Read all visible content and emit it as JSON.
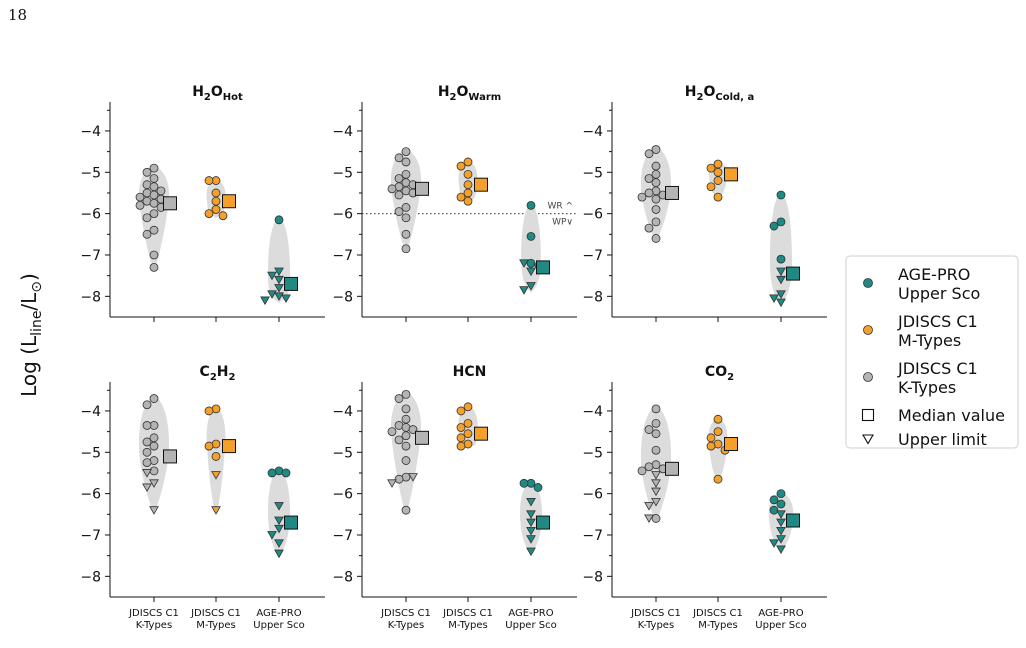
{
  "page_number": "18",
  "figure": {
    "ylabel_main": "Log (L",
    "ylabel_sub": "line",
    "ylabel_mid": "/L",
    "ylabel_sun": "⊙",
    "ylabel_end": ")",
    "dotted_line_labels": [
      "WR ^",
      "WP∨"
    ]
  },
  "legend": {
    "entries": [
      {
        "line1": "AGE-PRO",
        "line2": "Upper Sco",
        "marker": "circle",
        "color": "#1f8a84"
      },
      {
        "line1": "JDISCS C1",
        "line2": "M-Types",
        "marker": "circle",
        "color": "#f4a02a"
      },
      {
        "line1": "JDISCS C1",
        "line2": "K-Types",
        "marker": "circle",
        "color": "#b4b4b4"
      },
      {
        "line1": "Median value",
        "line2": "",
        "marker": "square-open",
        "color": "#ffffff"
      },
      {
        "line1": "Upper limit",
        "line2": "",
        "marker": "triangle-open",
        "color": "#ffffff"
      }
    ]
  },
  "chart_data": [
    {
      "type": "scatter",
      "title_base": "H",
      "title_sub1": "2",
      "title_mid": "O",
      "title_sub2": "Hot",
      "yticks": [
        -4,
        -5,
        -6,
        -7,
        -8
      ],
      "ylim": [
        -8.5,
        -3.3
      ],
      "categories": [
        "JDISCS C1 K-Types",
        "JDISCS C1 M-Types",
        "AGE-PRO Upper Sco"
      ],
      "xticklabels": [
        [
          "JDISCS C1",
          "K-Types"
        ],
        [
          "JDISCS C1",
          "M-Types"
        ],
        [
          "AGE-PRO",
          "Upper Sco"
        ]
      ],
      "series": [
        {
          "name": "JDISCS C1 K-Types",
          "color": "#b4b4b4",
          "median": -5.75,
          "detections": [
            -4.9,
            -5.0,
            -5.15,
            -5.3,
            -5.35,
            -5.45,
            -5.5,
            -5.55,
            -5.6,
            -5.65,
            -5.7,
            -5.75,
            -5.8,
            -5.85,
            -6.0,
            -6.1,
            -6.4,
            -6.5,
            -7.0,
            -7.3
          ],
          "upper_limits": []
        },
        {
          "name": "JDISCS C1 M-Types",
          "color": "#f4a02a",
          "median": -5.7,
          "detections": [
            -5.2,
            -5.2,
            -5.5,
            -5.7,
            -5.9,
            -6.0,
            -6.05
          ],
          "upper_limits": []
        },
        {
          "name": "AGE-PRO Upper Sco",
          "color": "#1f8a84",
          "median": -7.7,
          "detections": [
            -6.15
          ],
          "upper_limits": [
            -7.4,
            -7.5,
            -7.6,
            -7.8,
            -7.95,
            -8.0,
            -8.05,
            -8.1
          ]
        }
      ]
    },
    {
      "type": "scatter",
      "title_base": "H",
      "title_sub1": "2",
      "title_mid": "O",
      "title_sub2": "Warm",
      "yticks": [
        -4,
        -5,
        -6,
        -7,
        -8
      ],
      "ylim": [
        -8.5,
        -3.3
      ],
      "dotted_line": -6.0,
      "categories": [
        "JDISCS C1 K-Types",
        "JDISCS C1 M-Types",
        "AGE-PRO Upper Sco"
      ],
      "xticklabels": [
        [
          "JDISCS C1",
          "K-Types"
        ],
        [
          "JDISCS C1",
          "M-Types"
        ],
        [
          "AGE-PRO",
          "Upper Sco"
        ]
      ],
      "series": [
        {
          "name": "JDISCS C1 K-Types",
          "color": "#b4b4b4",
          "median": -5.4,
          "detections": [
            -4.5,
            -4.65,
            -4.75,
            -5.05,
            -5.15,
            -5.25,
            -5.3,
            -5.35,
            -5.4,
            -5.45,
            -5.5,
            -5.55,
            -5.85,
            -5.95,
            -6.1,
            -6.5,
            -6.85
          ],
          "upper_limits": []
        },
        {
          "name": "JDISCS C1 M-Types",
          "color": "#f4a02a",
          "median": -5.3,
          "detections": [
            -4.75,
            -4.85,
            -5.05,
            -5.3,
            -5.5,
            -5.6,
            -5.7
          ],
          "upper_limits": []
        },
        {
          "name": "AGE-PRO Upper Sco",
          "color": "#1f8a84",
          "median": -7.3,
          "detections": [
            -5.8,
            -6.55,
            -7.2
          ],
          "upper_limits": [
            -7.2,
            -7.3,
            -7.4,
            -7.75,
            -7.85
          ]
        }
      ]
    },
    {
      "type": "scatter",
      "title_base": "H",
      "title_sub1": "2",
      "title_mid": "O",
      "title_sub2": "Cold, a",
      "yticks": [
        -4,
        -5,
        -6,
        -7,
        -8
      ],
      "ylim": [
        -8.5,
        -3.3
      ],
      "categories": [
        "JDISCS C1 K-Types",
        "JDISCS C1 M-Types",
        "AGE-PRO Upper Sco"
      ],
      "xticklabels": [
        [
          "JDISCS C1",
          "K-Types"
        ],
        [
          "JDISCS C1",
          "M-Types"
        ],
        [
          "AGE-PRO",
          "Upper Sco"
        ]
      ],
      "series": [
        {
          "name": "JDISCS C1 K-Types",
          "color": "#b4b4b4",
          "median": -5.5,
          "detections": [
            -4.45,
            -4.55,
            -4.85,
            -5.05,
            -5.15,
            -5.25,
            -5.45,
            -5.5,
            -5.55,
            -5.6,
            -5.65,
            -5.9,
            -6.2,
            -6.35,
            -6.6
          ],
          "upper_limits": []
        },
        {
          "name": "JDISCS C1 M-Types",
          "color": "#f4a02a",
          "median": -5.05,
          "detections": [
            -4.8,
            -4.9,
            -5.0,
            -5.2,
            -5.35,
            -5.6
          ],
          "upper_limits": []
        },
        {
          "name": "AGE-PRO Upper Sco",
          "color": "#1f8a84",
          "median": -7.45,
          "detections": [
            -5.55,
            -6.2,
            -6.3,
            -7.1
          ],
          "upper_limits": [
            -7.4,
            -7.6,
            -7.95,
            -8.05,
            -8.15
          ]
        }
      ]
    },
    {
      "type": "scatter",
      "title_base": "C",
      "title_sub1": "2",
      "title_mid": "H",
      "title_sub2": "2",
      "yticks": [
        -4,
        -5,
        -6,
        -7,
        -8
      ],
      "ylim": [
        -8.5,
        -3.3
      ],
      "categories": [
        "JDISCS C1 K-Types",
        "JDISCS C1 M-Types",
        "AGE-PRO Upper Sco"
      ],
      "xticklabels": [
        [
          "JDISCS C1",
          "K-Types"
        ],
        [
          "JDISCS C1",
          "M-Types"
        ],
        [
          "AGE-PRO",
          "Upper Sco"
        ]
      ],
      "series": [
        {
          "name": "JDISCS C1 K-Types",
          "color": "#b4b4b4",
          "median": -5.1,
          "detections": [
            -3.7,
            -3.85,
            -4.35,
            -4.35,
            -4.65,
            -4.75,
            -4.85,
            -5.0,
            -5.2,
            -5.25,
            -5.45
          ],
          "upper_limits": [
            -5.5,
            -5.75,
            -5.85,
            -6.4
          ]
        },
        {
          "name": "JDISCS C1 M-Types",
          "color": "#f4a02a",
          "median": -4.85,
          "detections": [
            -3.95,
            -4.0,
            -4.8,
            -4.85,
            -5.1
          ],
          "upper_limits": [
            -5.55,
            -6.4
          ]
        },
        {
          "name": "AGE-PRO Upper Sco",
          "color": "#1f8a84",
          "median": -6.7,
          "detections": [
            -5.45,
            -5.5,
            -5.5
          ],
          "upper_limits": [
            -6.3,
            -6.65,
            -6.85,
            -7.0,
            -7.2,
            -7.45
          ]
        }
      ]
    },
    {
      "type": "scatter",
      "title_base": "HCN",
      "title_sub1": "",
      "title_mid": "",
      "title_sub2": "",
      "yticks": [
        -4,
        -5,
        -6,
        -7,
        -8
      ],
      "ylim": [
        -8.5,
        -3.3
      ],
      "categories": [
        "JDISCS C1 K-Types",
        "JDISCS C1 M-Types",
        "AGE-PRO Upper Sco"
      ],
      "xticklabels": [
        [
          "JDISCS C1",
          "K-Types"
        ],
        [
          "JDISCS C1",
          "M-Types"
        ],
        [
          "AGE-PRO",
          "Upper Sco"
        ]
      ],
      "series": [
        {
          "name": "JDISCS C1 K-Types",
          "color": "#b4b4b4",
          "median": -4.65,
          "detections": [
            -3.6,
            -3.7,
            -3.95,
            -4.2,
            -4.35,
            -4.4,
            -4.45,
            -4.5,
            -4.6,
            -4.7,
            -4.85,
            -5.2,
            -5.6,
            -5.65,
            -6.4
          ],
          "upper_limits": [
            -5.6,
            -5.75
          ]
        },
        {
          "name": "JDISCS C1 M-Types",
          "color": "#f4a02a",
          "median": -4.55,
          "detections": [
            -3.9,
            -4.0,
            -4.3,
            -4.4,
            -4.55,
            -4.65,
            -4.8,
            -4.85
          ],
          "upper_limits": []
        },
        {
          "name": "AGE-PRO Upper Sco",
          "color": "#1f8a84",
          "median": -6.7,
          "detections": [
            -5.75,
            -5.75,
            -5.85
          ],
          "upper_limits": [
            -6.2,
            -6.5,
            -6.7,
            -6.9,
            -7.1,
            -7.4
          ]
        }
      ]
    },
    {
      "type": "scatter",
      "title_base": "CO",
      "title_sub1": "2",
      "title_mid": "",
      "title_sub2": "",
      "yticks": [
        -4,
        -5,
        -6,
        -7,
        -8
      ],
      "ylim": [
        -8.5,
        -3.3
      ],
      "categories": [
        "JDISCS C1 K-Types",
        "JDISCS C1 M-Types",
        "AGE-PRO Upper Sco"
      ],
      "xticklabels": [
        [
          "JDISCS C1",
          "K-Types"
        ],
        [
          "JDISCS C1",
          "M-Types"
        ],
        [
          "AGE-PRO",
          "Upper Sco"
        ]
      ],
      "series": [
        {
          "name": "JDISCS C1 K-Types",
          "color": "#b4b4b4",
          "median": -5.4,
          "detections": [
            -3.95,
            -4.3,
            -4.45,
            -4.55,
            -4.95,
            -5.3,
            -5.35,
            -5.4,
            -5.45,
            -6.6
          ],
          "upper_limits": [
            -5.55,
            -5.75,
            -5.95,
            -6.2,
            -6.3,
            -6.6
          ]
        },
        {
          "name": "JDISCS C1 M-Types",
          "color": "#f4a02a",
          "median": -4.8,
          "detections": [
            -4.2,
            -4.5,
            -4.65,
            -4.8,
            -4.85,
            -4.95,
            -5.65
          ],
          "upper_limits": []
        },
        {
          "name": "AGE-PRO Upper Sco",
          "color": "#1f8a84",
          "median": -6.65,
          "detections": [
            -6.0,
            -6.15,
            -6.25,
            -6.4
          ],
          "upper_limits": [
            -6.5,
            -6.7,
            -6.9,
            -7.1,
            -7.2,
            -7.35
          ]
        }
      ]
    }
  ]
}
